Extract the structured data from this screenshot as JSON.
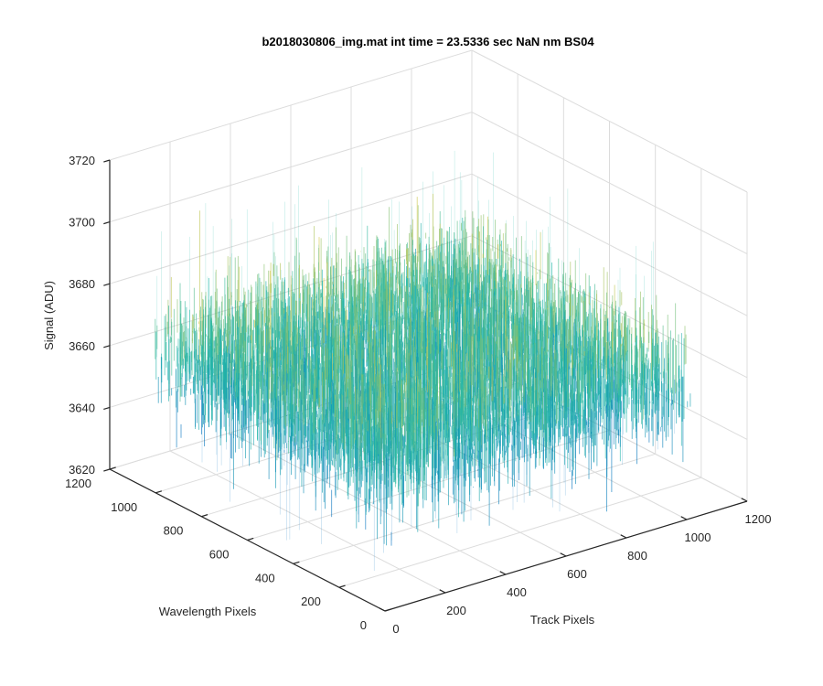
{
  "chart_data": {
    "type": "surface",
    "title": "b2018030806_img.mat int time = 23.5336 sec  NaN nm BS04",
    "xlabel": "Track Pixels",
    "ylabel": "Wavelength Pixels",
    "zlabel": "Signal (ADU)",
    "xlim": [
      0,
      1200
    ],
    "ylim": [
      0,
      1200
    ],
    "zlim": [
      3620,
      3720
    ],
    "x_ticks": [
      "0",
      "200",
      "400",
      "600",
      "800",
      "1000",
      "1200"
    ],
    "y_ticks": [
      "0",
      "200",
      "400",
      "600",
      "800",
      "1000",
      "1200"
    ],
    "z_ticks": [
      "3620",
      "3640",
      "3660",
      "3680",
      "3700",
      "3720"
    ],
    "grid": true,
    "colormap": "parula",
    "surface": {
      "x_range": [
        1,
        1024
      ],
      "y_range": [
        1,
        1024
      ],
      "mean_signal": 3664,
      "noise_typical": [
        3645,
        3685
      ],
      "noise_extremes": [
        3625,
        3710
      ]
    },
    "colors": {
      "low": "#0072bd",
      "mid": "#21b8a8",
      "high": "#e6c93c"
    }
  }
}
